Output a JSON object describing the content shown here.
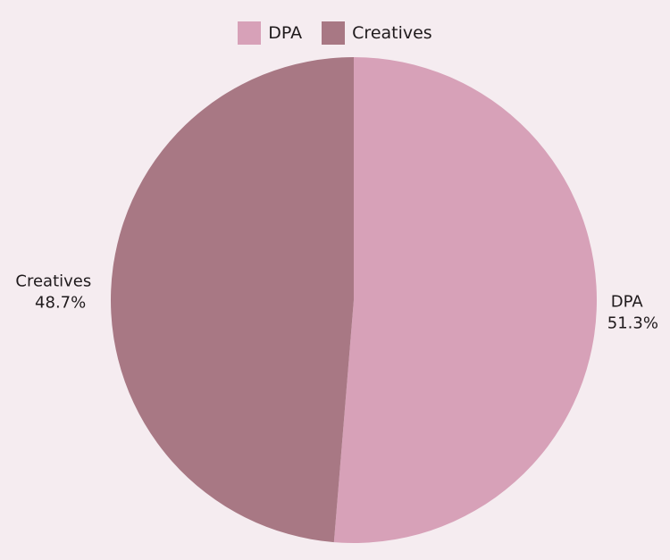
{
  "chart_data": {
    "type": "pie",
    "title": "",
    "legend_position": "top",
    "slices": [
      {
        "label": "DPA",
        "value": 51.3,
        "value_label": "51.3%",
        "color": "#d7a1b8"
      },
      {
        "label": "Creatives",
        "value": 48.7,
        "value_label": "48.7%",
        "color": "#a87884"
      }
    ]
  }
}
